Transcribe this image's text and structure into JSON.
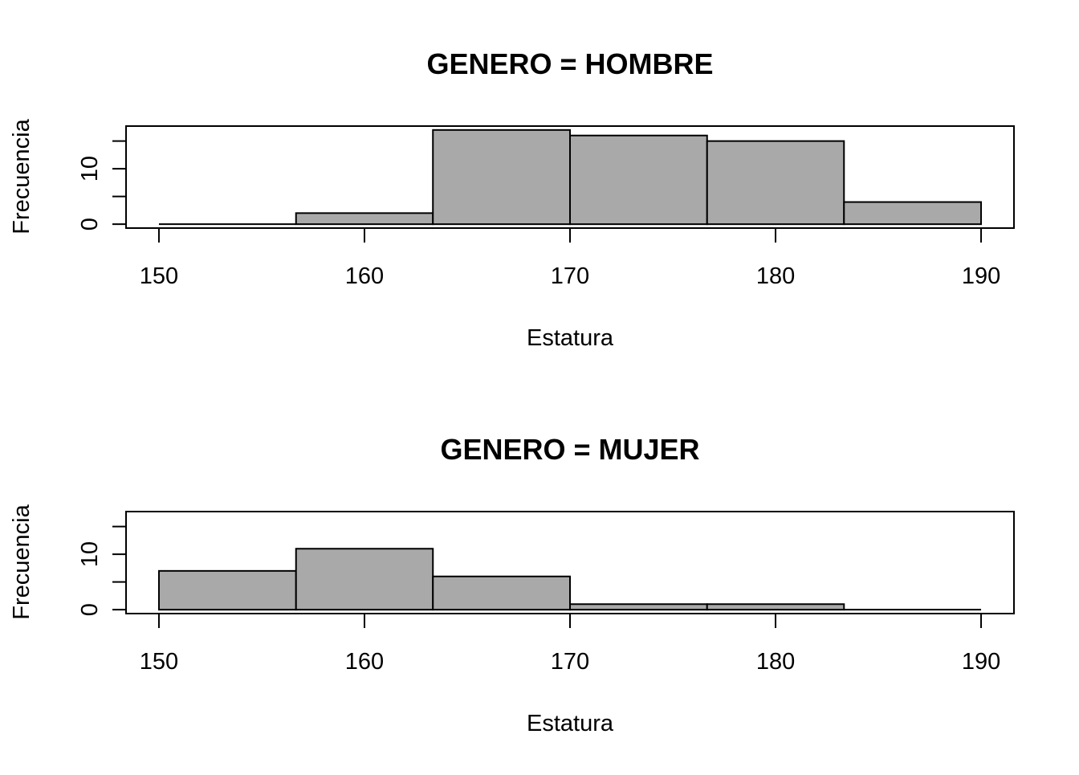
{
  "chart_data": [
    {
      "type": "bar",
      "title": "GENERO = HOMBRE",
      "xlabel": "Estatura",
      "ylabel": "Frecuencia",
      "bins": [
        {
          "x0": 150.0,
          "x1": 156.67,
          "value": 0
        },
        {
          "x0": 156.67,
          "x1": 163.33,
          "value": 2
        },
        {
          "x0": 163.33,
          "x1": 170.0,
          "value": 17
        },
        {
          "x0": 170.0,
          "x1": 176.67,
          "value": 16
        },
        {
          "x0": 176.67,
          "x1": 183.33,
          "value": 15
        },
        {
          "x0": 183.33,
          "x1": 190.0,
          "value": 4
        }
      ],
      "xlim": [
        148.4,
        191.6
      ],
      "ylim": [
        -0.7,
        17.7
      ],
      "xticks": [
        150,
        160,
        170,
        180,
        190
      ],
      "yticks": [
        0,
        5,
        10,
        15
      ],
      "ytick_labels": [
        "0",
        "",
        "10",
        ""
      ],
      "bar_color": "#a9a9a9",
      "grid": false
    },
    {
      "type": "bar",
      "title": "GENERO = MUJER",
      "xlabel": "Estatura",
      "ylabel": "Frecuencia",
      "bins": [
        {
          "x0": 150.0,
          "x1": 156.67,
          "value": 7
        },
        {
          "x0": 156.67,
          "x1": 163.33,
          "value": 11
        },
        {
          "x0": 163.33,
          "x1": 170.0,
          "value": 6
        },
        {
          "x0": 170.0,
          "x1": 176.67,
          "value": 1
        },
        {
          "x0": 176.67,
          "x1": 183.33,
          "value": 1
        },
        {
          "x0": 183.33,
          "x1": 190.0,
          "value": 0
        }
      ],
      "xlim": [
        148.4,
        191.6
      ],
      "ylim": [
        -0.7,
        17.7
      ],
      "xticks": [
        150,
        160,
        170,
        180,
        190
      ],
      "yticks": [
        0,
        5,
        10,
        15
      ],
      "ytick_labels": [
        "0",
        "",
        "10",
        ""
      ],
      "bar_color": "#a9a9a9",
      "grid": false
    }
  ]
}
